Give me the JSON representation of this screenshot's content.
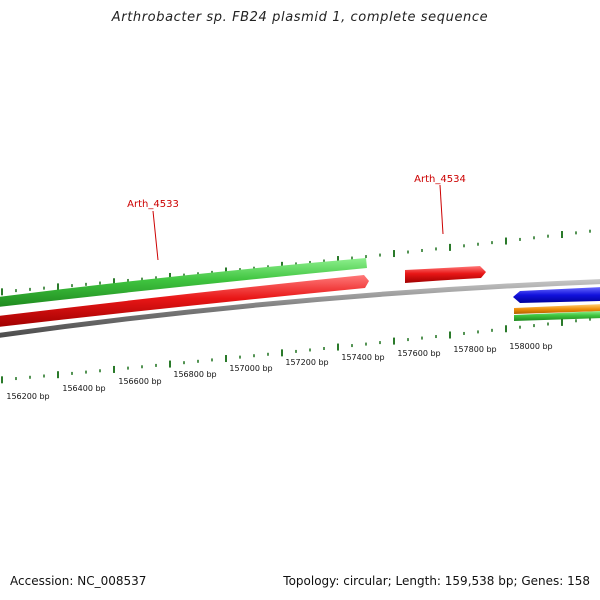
{
  "title": "Arthrobacter sp. FB24 plasmid 1, complete sequence",
  "footer": {
    "accession": "Accession: NC_008537",
    "summary": "Topology: circular; Length: 159,538 bp; Genes: 158"
  },
  "colors": {
    "backbone": "#7a7a7a",
    "tick": "#2a7a2a",
    "gene_label": "#cc0000",
    "forward_green": "#3fc43f",
    "forward_red": "#e81616",
    "reverse_blue": "#1111dd",
    "reverse_orange": "#f0900a",
    "reverse_green": "#3fc43f"
  },
  "scale_labels": [
    "156200 bp",
    "156400 bp",
    "156600 bp",
    "156800 bp",
    "157000 bp",
    "157200 bp",
    "157400 bp",
    "157600 bp",
    "157800 bp",
    "158000 bp"
  ],
  "gene_labels": [
    "Arth_4533",
    "Arth_4534"
  ]
}
